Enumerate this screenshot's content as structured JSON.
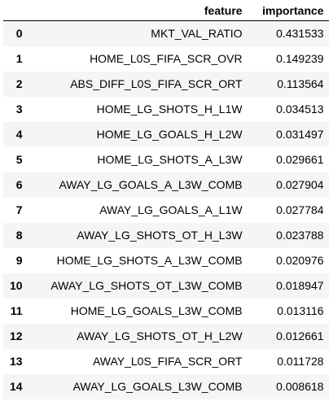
{
  "table": {
    "index_header": "",
    "columns": [
      "feature",
      "importance"
    ],
    "rows": [
      {
        "index": "0",
        "feature": "MKT_VAL_RATIO",
        "importance": "0.431533"
      },
      {
        "index": "1",
        "feature": "HOME_L0S_FIFA_SCR_OVR",
        "importance": "0.149239"
      },
      {
        "index": "2",
        "feature": "ABS_DIFF_L0S_FIFA_SCR_ORT",
        "importance": "0.113564"
      },
      {
        "index": "3",
        "feature": "HOME_LG_SHOTS_H_L1W",
        "importance": "0.034513"
      },
      {
        "index": "4",
        "feature": "HOME_LG_GOALS_H_L2W",
        "importance": "0.031497"
      },
      {
        "index": "5",
        "feature": "HOME_LG_SHOTS_A_L3W",
        "importance": "0.029661"
      },
      {
        "index": "6",
        "feature": "AWAY_LG_GOALS_A_L3W_COMB",
        "importance": "0.027904"
      },
      {
        "index": "7",
        "feature": "AWAY_LG_GOALS_A_L1W",
        "importance": "0.027784"
      },
      {
        "index": "8",
        "feature": "AWAY_LG_SHOTS_OT_H_L3W",
        "importance": "0.023788"
      },
      {
        "index": "9",
        "feature": "HOME_LG_SHOTS_A_L3W_COMB",
        "importance": "0.020976"
      },
      {
        "index": "10",
        "feature": "AWAY_LG_SHOTS_OT_L3W_COMB",
        "importance": "0.018947"
      },
      {
        "index": "11",
        "feature": "HOME_LG_GOALS_L3W_COMB",
        "importance": "0.013116"
      },
      {
        "index": "12",
        "feature": "AWAY_LG_SHOTS_OT_H_L2W",
        "importance": "0.012661"
      },
      {
        "index": "13",
        "feature": "AWAY_L0S_FIFA_SCR_ORT",
        "importance": "0.011728"
      },
      {
        "index": "14",
        "feature": "AWAY_LG_GOALS_L3W_COMB",
        "importance": "0.008618"
      }
    ]
  }
}
